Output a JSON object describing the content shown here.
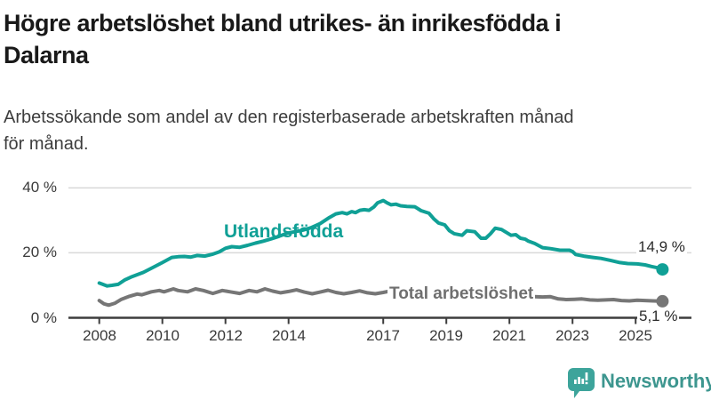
{
  "header": {
    "title_lines": [
      "Högre arbetslöshet bland utrikes- än inrikesfödda i",
      "Dalarna"
    ],
    "subtitle_lines": [
      "Arbetssökande som andel av den registerbaserade arbetskraften månad",
      "för månad."
    ]
  },
  "chart_data": {
    "type": "line",
    "unit": "% av registerbaserad arbetskraft",
    "x_axis": {
      "range": [
        2007.8,
        2026.4
      ],
      "ticks": [
        {
          "year": 2008,
          "label": "2008"
        },
        {
          "year": 2010,
          "label": "2010"
        },
        {
          "year": 2012,
          "label": "2012"
        },
        {
          "year": 2014,
          "label": "2014"
        },
        {
          "year": 2017,
          "label": "2017"
        },
        {
          "year": 2019,
          "label": "2019"
        },
        {
          "year": 2021,
          "label": "2021"
        },
        {
          "year": 2023,
          "label": "2023"
        },
        {
          "year": 2025,
          "label": "2025"
        }
      ]
    },
    "y_axis": {
      "range": [
        0,
        44
      ],
      "gridline_values": [
        20,
        40
      ],
      "ticks": [
        {
          "value": 0,
          "label": "0 %"
        },
        {
          "value": 20,
          "label": "20 %"
        },
        {
          "value": 40,
          "label": "40 %"
        }
      ]
    },
    "grid": true,
    "legend_position": "inline-labels",
    "series": [
      {
        "name": "Utlandsfödda",
        "color": "#10a096",
        "end_label": "14,9 %",
        "end_value": 14.9,
        "points": [
          [
            2008.0,
            10.7
          ],
          [
            2008.25,
            9.8
          ],
          [
            2008.4,
            10.0
          ],
          [
            2008.6,
            10.3
          ],
          [
            2008.8,
            11.6
          ],
          [
            2009.0,
            12.5
          ],
          [
            2009.4,
            14.0
          ],
          [
            2009.7,
            15.5
          ],
          [
            2010.0,
            17.0
          ],
          [
            2010.3,
            18.6
          ],
          [
            2010.5,
            18.8
          ],
          [
            2010.7,
            18.9
          ],
          [
            2010.9,
            18.7
          ],
          [
            2011.1,
            19.2
          ],
          [
            2011.35,
            19.0
          ],
          [
            2011.6,
            19.6
          ],
          [
            2011.8,
            20.3
          ],
          [
            2012.0,
            21.4
          ],
          [
            2012.2,
            21.9
          ],
          [
            2012.45,
            21.7
          ],
          [
            2012.7,
            22.3
          ],
          [
            2012.95,
            23.0
          ],
          [
            2013.2,
            23.6
          ],
          [
            2013.45,
            24.3
          ],
          [
            2013.7,
            25.1
          ],
          [
            2013.95,
            26.0
          ],
          [
            2014.2,
            26.5
          ],
          [
            2014.45,
            27.0
          ],
          [
            2014.7,
            27.7
          ],
          [
            2015.0,
            29.0
          ],
          [
            2015.3,
            30.9
          ],
          [
            2015.5,
            32.0
          ],
          [
            2015.7,
            32.4
          ],
          [
            2015.85,
            32.0
          ],
          [
            2016.0,
            32.7
          ],
          [
            2016.12,
            32.4
          ],
          [
            2016.26,
            33.1
          ],
          [
            2016.4,
            33.3
          ],
          [
            2016.55,
            33.1
          ],
          [
            2016.7,
            34.1
          ],
          [
            2016.82,
            35.4
          ],
          [
            2017.0,
            36.1
          ],
          [
            2017.12,
            35.4
          ],
          [
            2017.25,
            34.8
          ],
          [
            2017.4,
            35.0
          ],
          [
            2017.55,
            34.5
          ],
          [
            2017.75,
            34.3
          ],
          [
            2018.0,
            34.2
          ],
          [
            2018.2,
            33.0
          ],
          [
            2018.45,
            32.2
          ],
          [
            2018.6,
            30.5
          ],
          [
            2018.75,
            29.2
          ],
          [
            2018.95,
            28.6
          ],
          [
            2019.1,
            26.8
          ],
          [
            2019.25,
            25.9
          ],
          [
            2019.5,
            25.4
          ],
          [
            2019.65,
            26.8
          ],
          [
            2019.9,
            26.5
          ],
          [
            2020.1,
            24.5
          ],
          [
            2020.25,
            24.5
          ],
          [
            2020.4,
            25.9
          ],
          [
            2020.55,
            27.6
          ],
          [
            2020.75,
            27.2
          ],
          [
            2021.05,
            25.4
          ],
          [
            2021.2,
            25.6
          ],
          [
            2021.35,
            24.5
          ],
          [
            2021.5,
            24.2
          ],
          [
            2021.6,
            23.6
          ],
          [
            2021.8,
            22.9
          ],
          [
            2022.05,
            21.6
          ],
          [
            2022.3,
            21.3
          ],
          [
            2022.6,
            20.8
          ],
          [
            2022.9,
            20.8
          ],
          [
            2023.0,
            20.4
          ],
          [
            2023.1,
            19.5
          ],
          [
            2023.35,
            19.0
          ],
          [
            2023.65,
            18.6
          ],
          [
            2023.9,
            18.3
          ],
          [
            2024.2,
            17.7
          ],
          [
            2024.5,
            17.0
          ],
          [
            2024.75,
            16.7
          ],
          [
            2025.05,
            16.6
          ],
          [
            2025.3,
            16.3
          ],
          [
            2025.5,
            15.8
          ],
          [
            2025.7,
            15.4
          ],
          [
            2025.85,
            14.9
          ]
        ]
      },
      {
        "name": "Total arbetslöshet",
        "color": "#767676",
        "end_label": "5,1 %",
        "end_value": 5.1,
        "points": [
          [
            2008.0,
            5.3
          ],
          [
            2008.15,
            4.3
          ],
          [
            2008.3,
            3.9
          ],
          [
            2008.5,
            4.5
          ],
          [
            2008.7,
            5.7
          ],
          [
            2008.95,
            6.6
          ],
          [
            2009.2,
            7.3
          ],
          [
            2009.35,
            7.1
          ],
          [
            2009.65,
            8.0
          ],
          [
            2009.9,
            8.4
          ],
          [
            2010.05,
            8.0
          ],
          [
            2010.35,
            8.9
          ],
          [
            2010.5,
            8.4
          ],
          [
            2010.8,
            8.0
          ],
          [
            2011.05,
            8.9
          ],
          [
            2011.3,
            8.4
          ],
          [
            2011.6,
            7.5
          ],
          [
            2011.9,
            8.4
          ],
          [
            2012.15,
            8.0
          ],
          [
            2012.45,
            7.5
          ],
          [
            2012.75,
            8.4
          ],
          [
            2013.0,
            8.0
          ],
          [
            2013.25,
            8.9
          ],
          [
            2013.5,
            8.2
          ],
          [
            2013.75,
            7.7
          ],
          [
            2014.0,
            8.1
          ],
          [
            2014.25,
            8.6
          ],
          [
            2014.5,
            7.9
          ],
          [
            2014.75,
            7.4
          ],
          [
            2015.0,
            7.9
          ],
          [
            2015.25,
            8.5
          ],
          [
            2015.5,
            7.8
          ],
          [
            2015.75,
            7.4
          ],
          [
            2016.0,
            7.8
          ],
          [
            2016.25,
            8.3
          ],
          [
            2016.5,
            7.7
          ],
          [
            2016.75,
            7.4
          ],
          [
            2017.0,
            7.8
          ],
          [
            2017.25,
            8.3
          ],
          [
            2017.5,
            7.7
          ],
          [
            2017.75,
            7.2
          ],
          [
            2018.0,
            7.5
          ],
          [
            2018.25,
            7.9
          ],
          [
            2018.5,
            7.3
          ],
          [
            2018.75,
            6.9
          ],
          [
            2019.0,
            7.1
          ],
          [
            2019.25,
            7.4
          ],
          [
            2019.5,
            6.9
          ],
          [
            2019.75,
            6.7
          ],
          [
            2020.0,
            6.9
          ],
          [
            2020.3,
            7.5
          ],
          [
            2020.55,
            7.9
          ],
          [
            2020.8,
            7.6
          ],
          [
            2021.05,
            7.4
          ],
          [
            2021.3,
            7.5
          ],
          [
            2021.55,
            6.9
          ],
          [
            2021.8,
            6.5
          ],
          [
            2022.05,
            6.4
          ],
          [
            2022.3,
            6.5
          ],
          [
            2022.55,
            5.8
          ],
          [
            2022.8,
            5.6
          ],
          [
            2023.05,
            5.7
          ],
          [
            2023.3,
            5.8
          ],
          [
            2023.55,
            5.5
          ],
          [
            2023.8,
            5.4
          ],
          [
            2024.05,
            5.5
          ],
          [
            2024.3,
            5.6
          ],
          [
            2024.55,
            5.3
          ],
          [
            2024.8,
            5.2
          ],
          [
            2025.05,
            5.4
          ],
          [
            2025.3,
            5.3
          ],
          [
            2025.55,
            5.2
          ],
          [
            2025.85,
            5.1
          ]
        ]
      }
    ]
  },
  "branding": {
    "name": "Newsworthy",
    "accent_color": "#3da49b"
  }
}
